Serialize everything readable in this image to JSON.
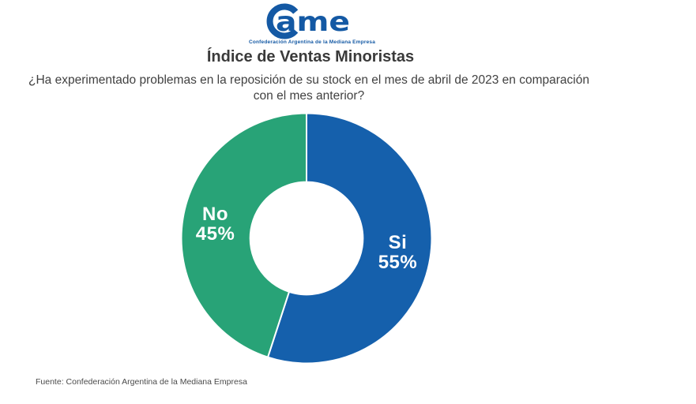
{
  "header": {
    "logo": {
      "text": "ame",
      "subtext": "Confederación Argentina de la Mediana Empresa",
      "color": "#1459a4"
    },
    "title": "Índice de Ventas Minoristas",
    "subtitle_line1": "¿Ha experimentado problemas en la reposición de su stock en el mes de abril de 2023 en comparación",
    "subtitle_line2": "con el mes anterior?"
  },
  "chart_data": {
    "type": "pie",
    "subtype": "donut",
    "title": "Índice de Ventas Minoristas",
    "question": "¿Ha experimentado problemas en la reposición de su stock en el mes de abril de 2023 en comparación con el mes anterior?",
    "slices": [
      {
        "label": "Si",
        "value": 55,
        "color": "#1560ac"
      },
      {
        "label": "No",
        "value": 45,
        "color": "#28a377"
      }
    ],
    "start_angle_deg": 0,
    "direction": "clockwise",
    "inner_radius_ratio": 0.45,
    "value_suffix": "%",
    "label_color": "#ffffff",
    "separator_color": "#ffffff",
    "legend_position": "none"
  },
  "footer": {
    "source": "Fuente: Confederación Argentina de la Mediana Empresa"
  }
}
